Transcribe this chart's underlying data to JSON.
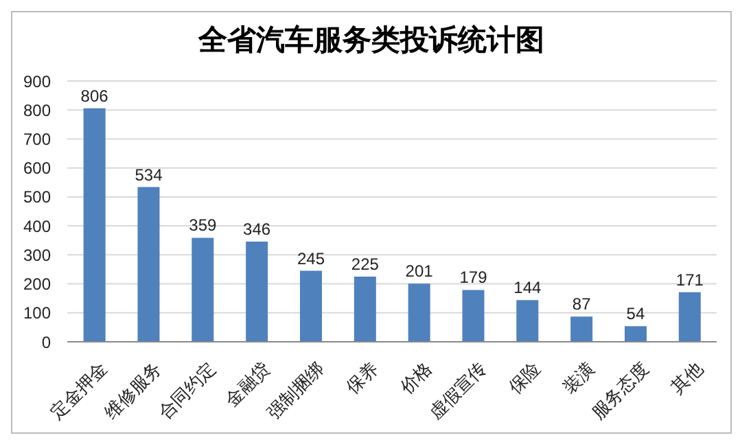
{
  "chart_data": {
    "type": "bar",
    "title": "全省汽车服务类投诉统计图",
    "categories": [
      "定金押金",
      "维修服务",
      "合同约定",
      "金融贷",
      "强制捆绑",
      "保养",
      "价格",
      "虚假宣传",
      "保险",
      "装潢",
      "服务态度",
      "其他"
    ],
    "values": [
      806,
      534,
      359,
      346,
      245,
      225,
      201,
      179,
      144,
      87,
      54,
      171
    ],
    "color": "#4f81bd",
    "ylim": [
      0,
      900
    ],
    "yticks": [
      0,
      100,
      200,
      300,
      400,
      500,
      600,
      700,
      800,
      900
    ],
    "grid": "y",
    "data_labels": true
  }
}
